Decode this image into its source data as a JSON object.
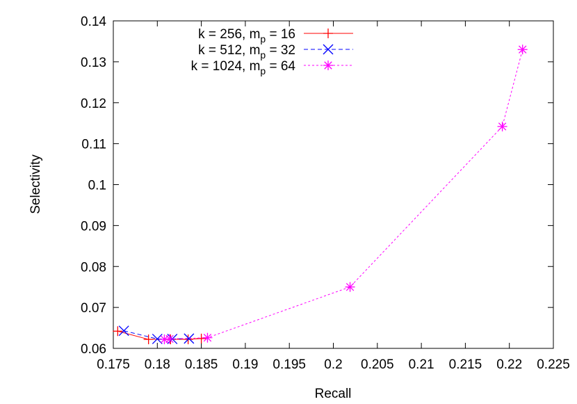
{
  "chart_data": {
    "type": "line",
    "xlabel": "Recall",
    "ylabel": "Selectivity",
    "xlim": [
      0.175,
      0.225
    ],
    "ylim": [
      0.06,
      0.14
    ],
    "xticks": [
      0.175,
      0.18,
      0.185,
      0.19,
      0.195,
      0.2,
      0.205,
      0.21,
      0.215,
      0.22,
      0.225
    ],
    "yticks": [
      0.06,
      0.07,
      0.08,
      0.09,
      0.1,
      0.11,
      0.12,
      0.13,
      0.14
    ],
    "xtick_labels": [
      "0.175",
      "0.18",
      "0.185",
      "0.19",
      "0.195",
      "0.2",
      "0.205",
      "0.21",
      "0.215",
      "0.22",
      "0.225"
    ],
    "ytick_labels": [
      "0.06",
      "0.07",
      "0.08",
      "0.09",
      "0.1",
      "0.11",
      "0.12",
      "0.13",
      "0.14"
    ],
    "grid": false,
    "legend_position": "top-left",
    "series": [
      {
        "name": "k = 256, m",
        "name_sub": "p",
        "name_suffix": " = 16",
        "color": "#ff0000",
        "marker": "plus",
        "dash": "",
        "x": [
          0.1755,
          0.179,
          0.1815,
          0.1835,
          0.185
        ],
        "y": [
          0.0642,
          0.0622,
          0.0622,
          0.0622,
          0.0624
        ]
      },
      {
        "name": "k = 512, m",
        "name_sub": "p",
        "name_suffix": " = 32",
        "color": "#0000ff",
        "marker": "cross",
        "dash": "6,4",
        "x": [
          0.1762,
          0.18,
          0.1817,
          0.1836
        ],
        "y": [
          0.0643,
          0.0623,
          0.0623,
          0.0624
        ]
      },
      {
        "name": "k = 1024, m",
        "name_sub": "p",
        "name_suffix": " = 64",
        "color": "#ff00ff",
        "marker": "star",
        "dash": "3,3",
        "x": [
          0.1808,
          0.1814,
          0.1857,
          0.2019,
          0.2192,
          0.2215
        ],
        "y": [
          0.0622,
          0.0623,
          0.0626,
          0.075,
          0.1142,
          0.133
        ]
      }
    ]
  }
}
